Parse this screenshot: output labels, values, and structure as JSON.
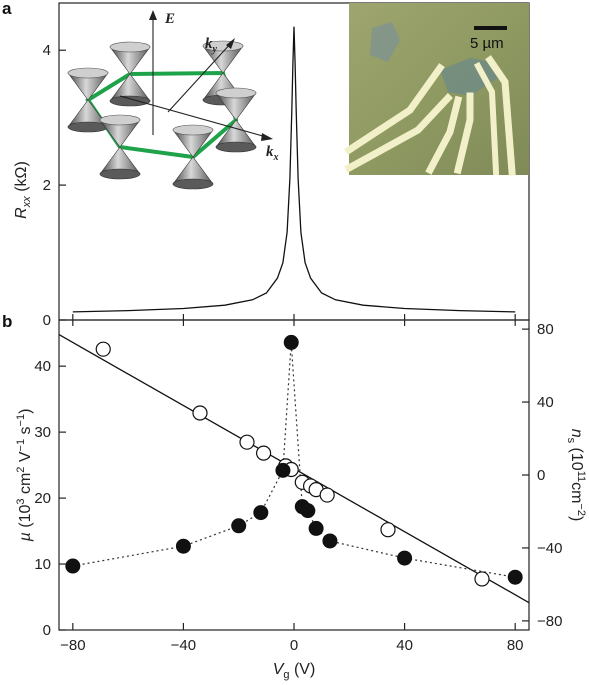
{
  "chart_data": [
    {
      "panel": "a",
      "type": "line",
      "ylabel": "R_xx (kΩ)",
      "ylim": [
        0,
        4.7
      ],
      "y_ticks": [
        "0",
        "2",
        "4"
      ],
      "x_range_same_as_panel_b": true,
      "series": [
        {
          "x": [
            -80,
            -60,
            -40,
            -25,
            -15,
            -10,
            -6,
            -4,
            -2.5,
            -1.5,
            -0.8,
            -0.4,
            0,
            0.4,
            0.8,
            1.5,
            2.5,
            4,
            6,
            10,
            15,
            25,
            40,
            60,
            80
          ],
          "values": [
            0.12,
            0.14,
            0.17,
            0.22,
            0.3,
            0.4,
            0.62,
            0.85,
            1.3,
            2.1,
            3.1,
            3.8,
            4.35,
            3.8,
            3.1,
            2.1,
            1.3,
            0.85,
            0.62,
            0.4,
            0.3,
            0.22,
            0.17,
            0.14,
            0.12
          ]
        }
      ],
      "inset_left": {
        "labels": [
          "E",
          "k_y",
          "k_x"
        ]
      },
      "inset_right": {
        "scale_bar": "5 µm"
      }
    },
    {
      "panel": "b",
      "type": "scatter",
      "xlabel": "V_g (V)",
      "ylabel": "µ (10³ cm² V⁻¹ s⁻¹)",
      "ylabel_right": "n_s (10¹¹cm⁻²)",
      "xlim": [
        -85,
        85
      ],
      "ylim": [
        0,
        47
      ],
      "ylim_right": [
        -85,
        85
      ],
      "x_ticks": [
        "-80",
        "-40",
        "0",
        "40",
        "80"
      ],
      "y_ticks": [
        "0",
        "10",
        "20",
        "30",
        "40"
      ],
      "y_ticks_right": [
        "-80",
        "-40",
        "0",
        "40",
        "80"
      ],
      "series": [
        {
          "marker": "filled",
          "axis": "left",
          "x": [
            -80,
            -40,
            -20,
            -12,
            -4,
            -1,
            3,
            5,
            8,
            13,
            40,
            80
          ],
          "values": [
            9.7,
            12.7,
            15.8,
            17.8,
            24.2,
            43.6,
            18.7,
            18.1,
            15.4,
            13.5,
            10.9,
            8.0
          ]
        },
        {
          "marker": "open",
          "axis": "right",
          "x": [
            -69,
            -34,
            -17,
            -11,
            -3,
            -1,
            3,
            6,
            8,
            12,
            34,
            68
          ],
          "values": [
            69,
            34,
            18,
            12,
            5,
            3,
            -4,
            -6,
            -8,
            -11,
            -30,
            -57
          ]
        },
        {
          "type": "line",
          "axis": "right",
          "x": [
            -85,
            85
          ],
          "values": [
            77,
            -70
          ]
        }
      ]
    }
  ]
}
